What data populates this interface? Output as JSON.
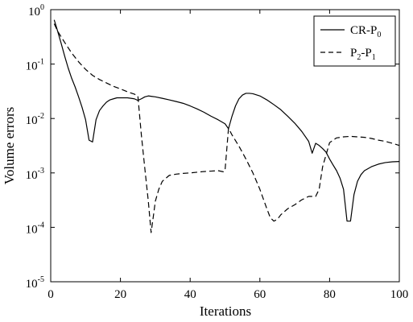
{
  "chart_data": {
    "type": "line",
    "xlabel": "Iterations",
    "ylabel": "Volume errors",
    "xlim": [
      0,
      100
    ],
    "ylim": [
      1e-05,
      1
    ],
    "yscale": "log",
    "x_ticks": [
      0,
      20,
      40,
      60,
      80,
      100
    ],
    "y_ticks": [
      {
        "value": 1e-05,
        "base": "10",
        "exp": "-5"
      },
      {
        "value": 0.0001,
        "base": "10",
        "exp": "-4"
      },
      {
        "value": 0.001,
        "base": "10",
        "exp": "-3"
      },
      {
        "value": 0.01,
        "base": "10",
        "exp": "-2"
      },
      {
        "value": 0.1,
        "base": "10",
        "exp": "-1"
      },
      {
        "value": 1,
        "base": "10",
        "exp": "0"
      }
    ],
    "grid": false,
    "legend_position": "top-right",
    "series": [
      {
        "name": "CR-P0",
        "legend": {
          "main": "CR-P",
          "sub": "0",
          "main2": "",
          "sub2": ""
        },
        "line_style": "solid",
        "color": "#000000",
        "x": [
          1,
          2,
          3,
          4,
          5,
          6,
          7,
          8,
          9,
          10,
          11,
          12,
          13,
          14,
          15,
          16,
          17,
          18,
          19,
          20,
          21,
          22,
          23,
          24,
          25,
          26,
          27,
          28,
          29,
          30,
          32,
          34,
          36,
          38,
          40,
          42,
          44,
          46,
          48,
          50,
          51,
          52,
          53,
          54,
          55,
          56,
          57,
          58,
          60,
          62,
          64,
          66,
          68,
          70,
          72,
          74,
          75,
          76,
          77,
          78,
          79,
          80,
          81,
          82,
          83,
          84,
          85,
          86,
          87,
          88,
          89,
          90,
          92,
          94,
          96,
          98,
          100
        ],
        "values": [
          0.65,
          0.4,
          0.24,
          0.14,
          0.085,
          0.055,
          0.038,
          0.025,
          0.016,
          0.0095,
          0.004,
          0.0037,
          0.0095,
          0.014,
          0.017,
          0.02,
          0.022,
          0.023,
          0.024,
          0.024,
          0.024,
          0.024,
          0.0235,
          0.023,
          0.0215,
          0.023,
          0.025,
          0.026,
          0.0255,
          0.025,
          0.0235,
          0.022,
          0.0205,
          0.019,
          0.017,
          0.015,
          0.013,
          0.011,
          0.0095,
          0.008,
          0.0065,
          0.011,
          0.017,
          0.023,
          0.027,
          0.029,
          0.029,
          0.0285,
          0.026,
          0.022,
          0.018,
          0.0145,
          0.011,
          0.0082,
          0.0058,
          0.0038,
          0.0023,
          0.0035,
          0.0032,
          0.0028,
          0.0024,
          0.0018,
          0.0014,
          0.0011,
          0.0008,
          0.0005,
          0.00013,
          0.00013,
          0.0004,
          0.0007,
          0.00093,
          0.0011,
          0.0013,
          0.00145,
          0.00155,
          0.0016,
          0.00162
        ]
      },
      {
        "name": "P2-P1",
        "legend": {
          "main": "P",
          "sub": "2",
          "main2": "-P",
          "sub2": "1"
        },
        "line_style": "dashed",
        "color": "#000000",
        "x": [
          1,
          2,
          4,
          6,
          8,
          10,
          12,
          14,
          16,
          18,
          20,
          22,
          24,
          25,
          26,
          27,
          28,
          28.8,
          29.5,
          30,
          31,
          32,
          34,
          36,
          38,
          40,
          42,
          44,
          46,
          48,
          49.5,
          50,
          51,
          52,
          54,
          56,
          58,
          60,
          62,
          63,
          64,
          65,
          66,
          68,
          70,
          72,
          74,
          75.5,
          76,
          77,
          78,
          80,
          82,
          84,
          86,
          88,
          90,
          92,
          94,
          96,
          98,
          100
        ],
        "values": [
          0.55,
          0.4,
          0.25,
          0.16,
          0.11,
          0.08,
          0.062,
          0.052,
          0.045,
          0.039,
          0.035,
          0.031,
          0.028,
          0.026,
          0.005,
          0.0012,
          0.0003,
          8e-05,
          0.00017,
          0.0003,
          0.0005,
          0.0007,
          0.0009,
          0.00095,
          0.00098,
          0.001,
          0.00103,
          0.00106,
          0.00108,
          0.0011,
          0.00105,
          0.0011,
          0.0066,
          0.005,
          0.0031,
          0.0018,
          0.001,
          0.0005,
          0.00022,
          0.00015,
          0.00013,
          0.00014,
          0.00017,
          0.00022,
          0.00026,
          0.00032,
          0.00037,
          0.00037,
          0.00037,
          0.0005,
          0.0013,
          0.0036,
          0.0044,
          0.0046,
          0.0047,
          0.0046,
          0.0045,
          0.0043,
          0.004,
          0.0038,
          0.0035,
          0.0032
        ]
      }
    ]
  }
}
